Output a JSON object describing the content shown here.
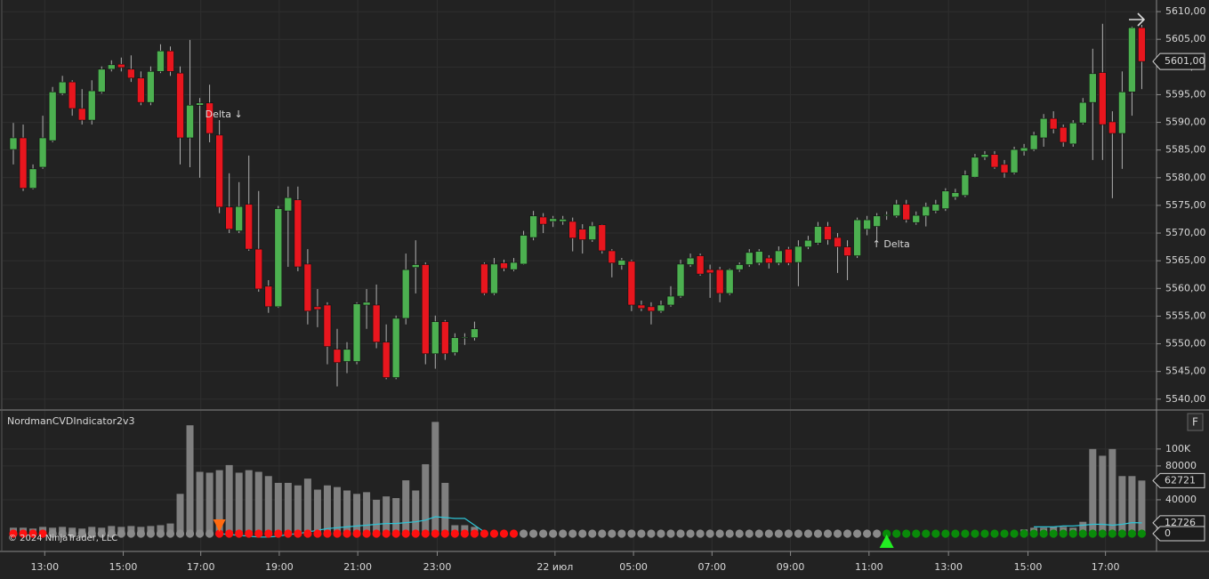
{
  "chart_data": [
    {
      "type": "candlestick",
      "open": [
        5585.1,
        5587.2,
        5578.1,
        5581.9,
        5586.7,
        5595.2,
        5597.3,
        5592.5,
        5590.4,
        5595.5,
        5599.6,
        5600.5,
        5599.6,
        5598.0,
        5593.6,
        5599.2,
        5602.9,
        5598.9,
        5587.2,
        5593.1,
        5593.5,
        5587.7,
        5574.7,
        5570.4,
        5575.2,
        5567.1,
        5560.4,
        5556.7,
        5574.0,
        5576.0,
        5564.4,
        5556.7,
        5557.0,
        5549.0,
        5546.8,
        5546.8,
        5557.0,
        5557.0,
        5550.3,
        5543.9,
        5554.6,
        5563.8,
        5564.3,
        5548.2,
        5554.0,
        5548.4,
        5551.1,
        5551.1,
        5564.4,
        5559.1,
        5564.6,
        5563.4,
        5564.4,
        5569.2,
        5572.9,
        5572.1,
        5572.1,
        5572.1,
        5570.7,
        5568.8,
        5571.5,
        5566.8,
        5564.2,
        5564.9,
        5557.0,
        5556.7,
        5555.9,
        5557.0,
        5558.6,
        5564.3,
        5565.9,
        5563.4,
        5563.4,
        5559.1,
        5563.4,
        5564.3,
        5564.6,
        5565.5,
        5564.6,
        5567.1,
        5564.7,
        5567.5,
        5568.2,
        5571.2,
        5569.2,
        5567.5,
        5565.9,
        5570.7,
        5571.2,
        5573.2,
        5573.1,
        5575.2,
        5571.9,
        5573.1,
        5574.0,
        5574.4,
        5576.5,
        5576.8,
        5580.1,
        5583.7,
        5584.2,
        5582.4,
        5580.9,
        5584.8,
        5585.1,
        5587.2,
        5590.7,
        5589.1,
        5586.1,
        5589.9,
        5593.6,
        5599.0,
        5590.1,
        5588.0,
        5595.5,
        5607.1
      ],
      "high": [
        5589.9,
        5589.6,
        5582.4,
        5591.2,
        5596.4,
        5598.4,
        5597.6,
        5596.0,
        5597.6,
        5600.1,
        5601.2,
        5601.7,
        5602.1,
        5599.2,
        5600.1,
        5604.1,
        5603.7,
        5600.1,
        5604.9,
        5594.4,
        5596.8,
        5590.4,
        5580.8,
        5579.2,
        5584.0,
        5577.6,
        5561.5,
        5574.9,
        5578.4,
        5578.4,
        5567.1,
        5559.9,
        5557.5,
        5552.7,
        5550.3,
        5557.5,
        5559.9,
        5560.7,
        5553.5,
        5555.1,
        5566.3,
        5568.7,
        5564.7,
        5555.1,
        5554.3,
        5551.9,
        5551.9,
        5554.0,
        5564.7,
        5565.5,
        5565.2,
        5565.5,
        5570.4,
        5574.0,
        5573.6,
        5573.1,
        5573.1,
        5572.8,
        5571.6,
        5572.0,
        5571.6,
        5567.1,
        5565.5,
        5565.2,
        5557.8,
        5557.5,
        5557.8,
        5560.4,
        5565.2,
        5566.3,
        5566.3,
        5564.3,
        5563.9,
        5563.6,
        5564.7,
        5567.1,
        5567.1,
        5566.0,
        5567.6,
        5567.5,
        5568.7,
        5569.5,
        5572.0,
        5572.0,
        5570.0,
        5568.7,
        5572.8,
        5573.1,
        5573.6,
        5573.9,
        5576.0,
        5576.0,
        5573.9,
        5575.5,
        5576.0,
        5578.1,
        5578.0,
        5581.3,
        5584.3,
        5584.8,
        5584.8,
        5583.2,
        5585.6,
        5586.1,
        5588.3,
        5591.5,
        5592.0,
        5589.6,
        5590.4,
        5594.4,
        5603.3,
        5607.8,
        5592.0,
        5599.2,
        5607.3,
        5607.6
      ],
      "low": [
        5582.4,
        5577.6,
        5577.9,
        5581.6,
        5586.4,
        5594.9,
        5591.2,
        5589.6,
        5589.6,
        5595.2,
        5599.2,
        5599.2,
        5597.3,
        5593.1,
        5593.1,
        5598.9,
        5598.4,
        5582.4,
        5581.9,
        5580.0,
        5586.4,
        5573.6,
        5570.0,
        5570.0,
        5566.8,
        5559.4,
        5555.6,
        5556.5,
        5563.9,
        5563.1,
        5553.5,
        5553.0,
        5546.3,
        5542.3,
        5544.7,
        5546.3,
        5552.7,
        5549.2,
        5543.6,
        5543.6,
        5553.5,
        5559.1,
        5546.3,
        5545.5,
        5547.1,
        5547.9,
        5549.8,
        5550.6,
        5558.8,
        5558.8,
        5563.1,
        5563.1,
        5564.3,
        5568.7,
        5570.0,
        5571.1,
        5571.5,
        5566.7,
        5566.3,
        5568.4,
        5566.3,
        5562.0,
        5563.4,
        5555.9,
        5555.9,
        5553.5,
        5555.6,
        5556.7,
        5558.3,
        5563.9,
        5562.3,
        5558.3,
        5557.5,
        5558.8,
        5563.0,
        5563.9,
        5564.2,
        5563.6,
        5564.2,
        5564.2,
        5560.4,
        5567.1,
        5567.9,
        5567.9,
        5562.8,
        5561.5,
        5565.5,
        5569.6,
        5568.7,
        5572.4,
        5572.8,
        5571.9,
        5571.5,
        5571.2,
        5573.6,
        5574.0,
        5576.0,
        5576.5,
        5580.0,
        5583.2,
        5581.6,
        5580.0,
        5580.6,
        5584.0,
        5584.8,
        5585.6,
        5588.0,
        5585.6,
        5585.6,
        5589.6,
        5583.2,
        5583.2,
        5576.3,
        5581.6,
        5591.2,
        5596.0
      ],
      "close": [
        5587.2,
        5578.1,
        5581.6,
        5587.2,
        5595.5,
        5597.3,
        5592.5,
        5590.4,
        5595.7,
        5599.6,
        5600.4,
        5599.9,
        5598.0,
        5593.6,
        5599.2,
        5602.9,
        5599.2,
        5587.2,
        5593.1,
        5593.5,
        5588.0,
        5574.7,
        5570.7,
        5574.8,
        5567.1,
        5559.9,
        5556.7,
        5574.4,
        5576.4,
        5563.9,
        5555.9,
        5556.2,
        5549.5,
        5546.6,
        5549.0,
        5557.2,
        5557.5,
        5550.3,
        5543.9,
        5554.6,
        5563.4,
        5564.3,
        5548.2,
        5554.0,
        5548.2,
        5551.1,
        5551.2,
        5552.7,
        5559.1,
        5564.4,
        5563.6,
        5564.7,
        5569.6,
        5573.1,
        5571.6,
        5572.6,
        5572.5,
        5569.1,
        5568.8,
        5571.3,
        5566.8,
        5564.6,
        5565.1,
        5557.0,
        5556.4,
        5555.9,
        5557.0,
        5558.6,
        5564.4,
        5565.5,
        5562.6,
        5562.8,
        5559.1,
        5563.4,
        5564.3,
        5566.5,
        5566.7,
        5564.6,
        5566.8,
        5564.6,
        5567.6,
        5568.7,
        5571.2,
        5568.8,
        5567.5,
        5565.9,
        5572.4,
        5572.4,
        5573.1,
        5573.3,
        5575.2,
        5572.4,
        5573.2,
        5574.8,
        5575.2,
        5577.6,
        5577.3,
        5580.5,
        5583.7,
        5584.2,
        5581.9,
        5580.9,
        5585.1,
        5585.4,
        5587.7,
        5590.7,
        5588.8,
        5586.4,
        5589.9,
        5593.6,
        5598.8,
        5589.6,
        5588.0,
        5595.5,
        5607.1,
        5601.0
      ],
      "up_color": "#4cb050",
      "down_color": "#e8161e",
      "last_price": {
        "value": 5601,
        "label": "5601,00"
      },
      "xlim": [
        -1.36,
        116.5
      ],
      "ylim": [
        5538.2,
        5612.1
      ],
      "yticks": [
        {
          "value": 5540,
          "label": "5540,00"
        },
        {
          "value": 5545,
          "label": "5545,00"
        },
        {
          "value": 5550,
          "label": "5550,00"
        },
        {
          "value": 5555,
          "label": "5555,00"
        },
        {
          "value": 5560,
          "label": "5560,00"
        },
        {
          "value": 5565,
          "label": "5565,00"
        },
        {
          "value": 5570,
          "label": "5570,00"
        },
        {
          "value": 5575,
          "label": "5575,00"
        },
        {
          "value": 5580,
          "label": "5580,00"
        },
        {
          "value": 5585,
          "label": "5585,00"
        },
        {
          "value": 5590,
          "label": "5590,00"
        },
        {
          "value": 5595,
          "label": "5595,00"
        },
        {
          "value": 5600,
          "label": "5600,00"
        },
        {
          "value": 5605,
          "label": "5605,00"
        },
        {
          "value": 5610,
          "label": "5610,00"
        }
      ],
      "annotations": [
        {
          "index": 21,
          "text": "Delta ↓",
          "color": "#ff5a1f",
          "direction": "down"
        },
        {
          "index": 89,
          "text": "↑ Delta",
          "color": "#22cc22",
          "direction": "up"
        }
      ],
      "grid": true
    },
    {
      "type": "bar",
      "title": "NordmanCVDIndicator2v3",
      "button": "F",
      "copyright": "© 2024 NinjaTrader, LLC",
      "values": [
        7000,
        7000,
        6000,
        8000,
        7000,
        8000,
        7000,
        6000,
        8000,
        7000,
        9000,
        8000,
        9000,
        8000,
        9000,
        10000,
        12000,
        47000,
        128000,
        73000,
        72000,
        75000,
        81000,
        72000,
        75000,
        73000,
        68000,
        60000,
        60000,
        57000,
        65000,
        52000,
        57000,
        55000,
        51000,
        47000,
        49000,
        40000,
        44000,
        42000,
        63000,
        51000,
        82000,
        132000,
        60000,
        10000,
        10000,
        8000,
        0,
        0,
        0,
        0,
        0,
        0,
        0,
        0,
        0,
        0,
        0,
        0,
        0,
        0,
        0,
        0,
        0,
        0,
        0,
        0,
        0,
        0,
        0,
        0,
        0,
        0,
        0,
        0,
        0,
        0,
        0,
        0,
        0,
        0,
        0,
        0,
        0,
        0,
        0,
        0,
        0,
        0,
        0,
        0,
        0,
        0,
        0,
        0,
        0,
        0,
        0,
        0,
        0,
        0,
        0,
        5000,
        7000,
        7000,
        8000,
        8000,
        7000,
        14000,
        100000,
        92000,
        100000,
        68000,
        68000,
        62721
      ],
      "color": "#7f7f7f",
      "cvd": {
        "color": "#2ec4d6",
        "values": [
          null,
          null,
          null,
          null,
          null,
          null,
          null,
          null,
          null,
          null,
          null,
          null,
          null,
          null,
          null,
          null,
          null,
          null,
          null,
          null,
          null,
          0,
          -1000,
          -2000,
          -3000,
          -4000,
          -4000,
          -3000,
          -1000,
          0,
          2000,
          4000,
          6000,
          7000,
          8000,
          9000,
          10000,
          11000,
          12000,
          12000,
          13000,
          14000,
          16000,
          20000,
          19000,
          18000,
          18000,
          10000,
          2000,
          null,
          null,
          null,
          null,
          null,
          null,
          null,
          null,
          null,
          null,
          null,
          null,
          null,
          null,
          null,
          null,
          null,
          null,
          null,
          null,
          null,
          null,
          null,
          null,
          null,
          null,
          null,
          null,
          null,
          null,
          null,
          null,
          null,
          null,
          null,
          null,
          null,
          null,
          null,
          null,
          null,
          null,
          null,
          null,
          null,
          null,
          null,
          null,
          null,
          null,
          null,
          null,
          null,
          null,
          null,
          8000,
          8000,
          8000,
          9000,
          9000,
          10000,
          11000,
          11000,
          10000,
          11000,
          13000,
          12726
        ]
      },
      "dots": {
        "values": [
          0,
          0,
          0,
          0,
          0,
          0,
          0,
          0,
          0,
          0,
          0,
          0,
          0,
          0,
          0,
          0,
          0,
          0,
          0,
          0,
          0,
          0,
          0,
          0,
          0,
          0,
          0,
          0,
          0,
          0,
          0,
          0,
          0,
          0,
          0,
          0,
          0,
          0,
          0,
          0,
          0,
          0,
          0,
          0,
          0,
          0,
          0,
          0,
          0,
          0,
          0,
          0,
          0,
          0,
          0,
          0,
          0,
          0,
          0,
          0,
          0,
          0,
          0,
          0,
          0,
          0,
          0,
          0,
          0,
          0,
          0,
          0,
          0,
          0,
          0,
          0,
          0,
          0,
          0,
          0,
          0,
          0,
          0,
          0,
          0,
          0,
          0,
          0,
          0,
          0,
          0,
          0,
          0,
          0,
          0,
          0,
          0,
          0,
          0,
          0,
          0,
          0,
          0,
          0,
          0,
          0,
          0,
          0,
          0,
          0,
          0,
          0,
          0,
          0,
          0,
          0
        ],
        "runs": [
          {
            "start": 0,
            "end": 3,
            "color": "#ff1010"
          },
          {
            "start": 4,
            "end": 20,
            "color": "#8a8a8a"
          },
          {
            "start": 21,
            "end": 51,
            "color": "#ff1010"
          },
          {
            "start": 52,
            "end": 88,
            "color": "#8a8a8a"
          },
          {
            "start": 89,
            "end": 115,
            "color": "#0a8a0a"
          }
        ]
      },
      "signals": [
        {
          "index": 21,
          "direction": "down",
          "color": "#ff6a10"
        },
        {
          "index": 89,
          "direction": "up",
          "color": "#22ee22"
        }
      ],
      "xlim": [
        -1.36,
        116.5
      ],
      "ylim": [
        -21000,
        145000
      ],
      "yticks": [
        {
          "value": 100000,
          "label": "100K"
        },
        80000,
        40000
      ],
      "xticks": [
        {
          "value": 3.2,
          "label": "13:00"
        },
        {
          "value": 11.2,
          "label": "15:00"
        },
        {
          "value": 19.1,
          "label": "17:00"
        },
        {
          "value": 27.1,
          "label": "19:00"
        },
        {
          "value": 35.1,
          "label": "21:00"
        },
        {
          "value": 43.2,
          "label": "23:00"
        },
        {
          "value": 55.2,
          "label": "22 июл"
        },
        {
          "value": 63.2,
          "label": "05:00"
        },
        {
          "value": 71.2,
          "label": "07:00"
        },
        {
          "value": 79.2,
          "label": "09:00"
        },
        {
          "value": 87.2,
          "label": "11:00"
        },
        {
          "value": 95.3,
          "label": "13:00"
        },
        {
          "value": 103.4,
          "label": "15:00"
        },
        {
          "value": 111.3,
          "label": "17:00"
        }
      ],
      "grid": true
    }
  ]
}
